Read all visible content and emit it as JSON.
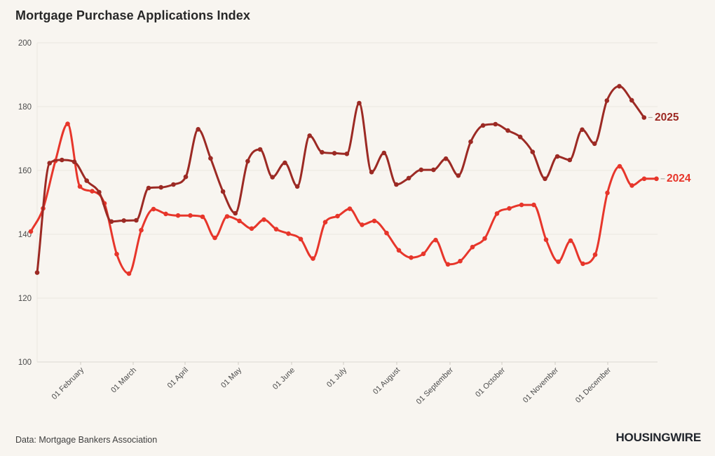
{
  "page": {
    "title": "Mortgage Purchase Applications Index",
    "source": "Data: Mortgage Bankers Association",
    "brand": "HOUSINGWIRE"
  },
  "chart_data": {
    "type": "line",
    "title": "Mortgage Purchase Applications Index",
    "xlabel": "",
    "ylabel": "",
    "ylim": [
      100,
      200
    ],
    "yticks": [
      200,
      180,
      160,
      140,
      120,
      100
    ],
    "x_tick_labels": [
      "01 February",
      "01 March",
      "01 April",
      "01 May",
      "01 June",
      "01 July",
      "01 August",
      "01 September",
      "01 October",
      "01 November",
      "01 December"
    ],
    "x_unit": "weekly points, January through December",
    "grid": "horizontal",
    "legend": "inline labels at right end of each line",
    "series": [
      {
        "name": "2024",
        "color": "#e7362b",
        "values": [
          140.9,
          148.1,
          163.0,
          174.6,
          155.0,
          153.5,
          149.7,
          133.8,
          127.7,
          141.3,
          147.9,
          146.4,
          145.9,
          145.9,
          145.5,
          138.9,
          145.6,
          144.2,
          141.8,
          144.6,
          141.6,
          140.2,
          138.5,
          132.4,
          143.8,
          145.7,
          148.0,
          143.0,
          144.2,
          140.4,
          135.0,
          132.7,
          133.9,
          138.2,
          130.6,
          131.6,
          136.0,
          138.7,
          146.5,
          148.1,
          149.2,
          149.2,
          138.3,
          131.4,
          138.0,
          130.8,
          133.6,
          153.0,
          161.3,
          155.3,
          157.4,
          157.4
        ]
      },
      {
        "name": "2025",
        "color": "#9c2a24",
        "values": [
          128.0,
          162.3,
          163.3,
          162.7,
          156.8,
          153.2,
          144.0,
          144.3,
          144.4,
          154.5,
          154.7,
          155.6,
          158.0,
          172.9,
          163.8,
          153.4,
          146.6,
          162.9,
          166.6,
          157.9,
          162.4,
          155.0,
          170.9,
          165.7,
          165.4,
          165.2,
          181.1,
          159.5,
          165.5,
          155.6,
          157.6,
          160.2,
          160.2,
          163.7,
          158.4,
          169.0,
          174.1,
          174.5,
          172.5,
          170.5,
          165.8,
          157.4,
          164.4,
          163.3,
          172.8,
          168.4,
          181.9,
          186.4,
          182.0,
          176.6
        ]
      }
    ]
  }
}
